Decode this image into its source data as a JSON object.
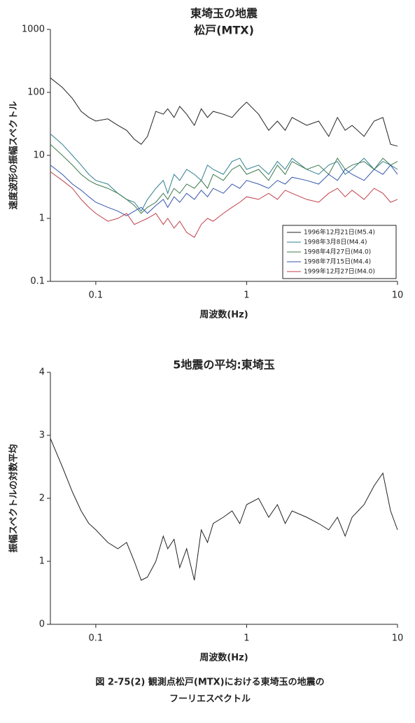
{
  "chart_data": [
    {
      "type": "line",
      "title": "東埼玉の地震",
      "subtitle": "松戸(MTX)",
      "x_label": "周波数(Hz)",
      "y_label": "速度波形の振幅スペクトル",
      "xscale": "log",
      "yscale": "log",
      "xlim": [
        0.05,
        10
      ],
      "ylim": [
        0.1,
        1000
      ],
      "xticks": [
        0.1,
        1,
        10
      ],
      "yticks": [
        0.1,
        1,
        10,
        100,
        1000
      ],
      "legend": "lower right",
      "x": [
        0.05,
        0.06,
        0.07,
        0.08,
        0.09,
        0.1,
        0.12,
        0.14,
        0.16,
        0.18,
        0.2,
        0.22,
        0.25,
        0.28,
        0.3,
        0.33,
        0.36,
        0.4,
        0.45,
        0.5,
        0.55,
        0.6,
        0.7,
        0.8,
        0.9,
        1,
        1.2,
        1.4,
        1.6,
        1.8,
        2,
        2.5,
        3,
        3.5,
        4,
        4.5,
        5,
        6,
        7,
        8,
        9,
        10
      ],
      "series": [
        {
          "name": "1996年12月21日(M5.4)",
          "color": "#222222",
          "values": [
            170,
            120,
            80,
            50,
            40,
            35,
            38,
            30,
            25,
            18,
            15,
            20,
            50,
            45,
            55,
            40,
            60,
            45,
            30,
            55,
            40,
            50,
            45,
            40,
            55,
            70,
            45,
            25,
            35,
            25,
            40,
            30,
            35,
            20,
            40,
            25,
            30,
            20,
            35,
            40,
            15,
            14
          ]
        },
        {
          "name": "1998年3月8日(M4.4)",
          "color": "#2f7f8f",
          "values": [
            22,
            15,
            10,
            7,
            5,
            4,
            3.5,
            2.5,
            2,
            1.8,
            1.3,
            2,
            3,
            4,
            2.5,
            5,
            4,
            6,
            5,
            4,
            7,
            6,
            5,
            8,
            9,
            6,
            7,
            5,
            8,
            6,
            9,
            6,
            5,
            7,
            8,
            5,
            6,
            9,
            6,
            8,
            7,
            6
          ]
        },
        {
          "name": "1998年4月27日(M4.0)",
          "color": "#3d7a4a",
          "values": [
            15,
            10,
            7,
            5,
            4,
            3.5,
            3,
            2.5,
            2,
            1.6,
            1.2,
            1.5,
            1.8,
            2.5,
            2,
            3,
            2.5,
            3.5,
            3,
            4,
            3,
            5,
            4,
            6,
            7,
            5,
            6,
            4,
            7,
            5,
            8,
            6,
            7,
            5,
            9,
            6,
            7,
            8,
            6,
            9,
            7,
            8
          ]
        },
        {
          "name": "1998年7月15日(M4.4)",
          "color": "#3355aa",
          "values": [
            7,
            5,
            3.5,
            2.8,
            2.2,
            1.8,
            1.5,
            1.3,
            1.1,
            1.3,
            1.5,
            1.2,
            1.6,
            2,
            1.5,
            2.2,
            1.8,
            2.5,
            2,
            2.8,
            2.2,
            3,
            2.5,
            3.5,
            3,
            4,
            3.5,
            3,
            4,
            3.5,
            4.5,
            4,
            3.5,
            5,
            4,
            6,
            5,
            4,
            6,
            5,
            7,
            5
          ]
        },
        {
          "name": "1999年12月27日(M4.0)",
          "color": "#c0404a",
          "values": [
            5.5,
            4,
            3,
            2,
            1.5,
            1.2,
            0.9,
            1,
            1.2,
            0.8,
            0.9,
            1,
            1.2,
            0.8,
            1,
            0.7,
            0.9,
            0.6,
            0.5,
            0.8,
            1,
            0.9,
            1.2,
            1.5,
            1.8,
            2.2,
            2,
            2.5,
            2,
            2.8,
            2.5,
            2,
            1.8,
            2.5,
            3,
            2.2,
            2.8,
            2,
            3,
            2.5,
            1.8,
            2
          ]
        }
      ]
    },
    {
      "type": "line",
      "title": "5地震の平均:東埼玉",
      "x_label": "周波数(Hz)",
      "y_label": "振幅スペクトルの対数平均",
      "xscale": "log",
      "xlim": [
        0.05,
        10
      ],
      "ylim": [
        0,
        4
      ],
      "xticks": [
        0.1,
        1,
        10
      ],
      "yticks": [
        0,
        1,
        2,
        3,
        4
      ],
      "x": [
        0.05,
        0.06,
        0.07,
        0.08,
        0.09,
        0.1,
        0.12,
        0.14,
        0.16,
        0.18,
        0.2,
        0.22,
        0.25,
        0.28,
        0.3,
        0.33,
        0.36,
        0.4,
        0.45,
        0.5,
        0.55,
        0.6,
        0.7,
        0.8,
        0.9,
        1,
        1.2,
        1.4,
        1.6,
        1.8,
        2,
        2.5,
        3,
        3.5,
        4,
        4.5,
        5,
        6,
        7,
        8,
        9,
        10
      ],
      "series": [
        {
          "color": "#222222",
          "values": [
            2.95,
            2.5,
            2.1,
            1.8,
            1.6,
            1.5,
            1.3,
            1.2,
            1.3,
            1.0,
            0.7,
            0.75,
            1.0,
            1.4,
            1.2,
            1.35,
            0.9,
            1.2,
            0.7,
            1.5,
            1.3,
            1.6,
            1.7,
            1.8,
            1.6,
            1.9,
            2.0,
            1.7,
            1.9,
            1.6,
            1.8,
            1.7,
            1.6,
            1.5,
            1.7,
            1.4,
            1.7,
            1.9,
            2.2,
            2.4,
            1.8,
            1.5
          ]
        }
      ]
    }
  ],
  "caption": [
    "図 2-75(2) 観測点松戸(MTX)における東埼玉の地震の",
    "フーリエスペクトル"
  ]
}
